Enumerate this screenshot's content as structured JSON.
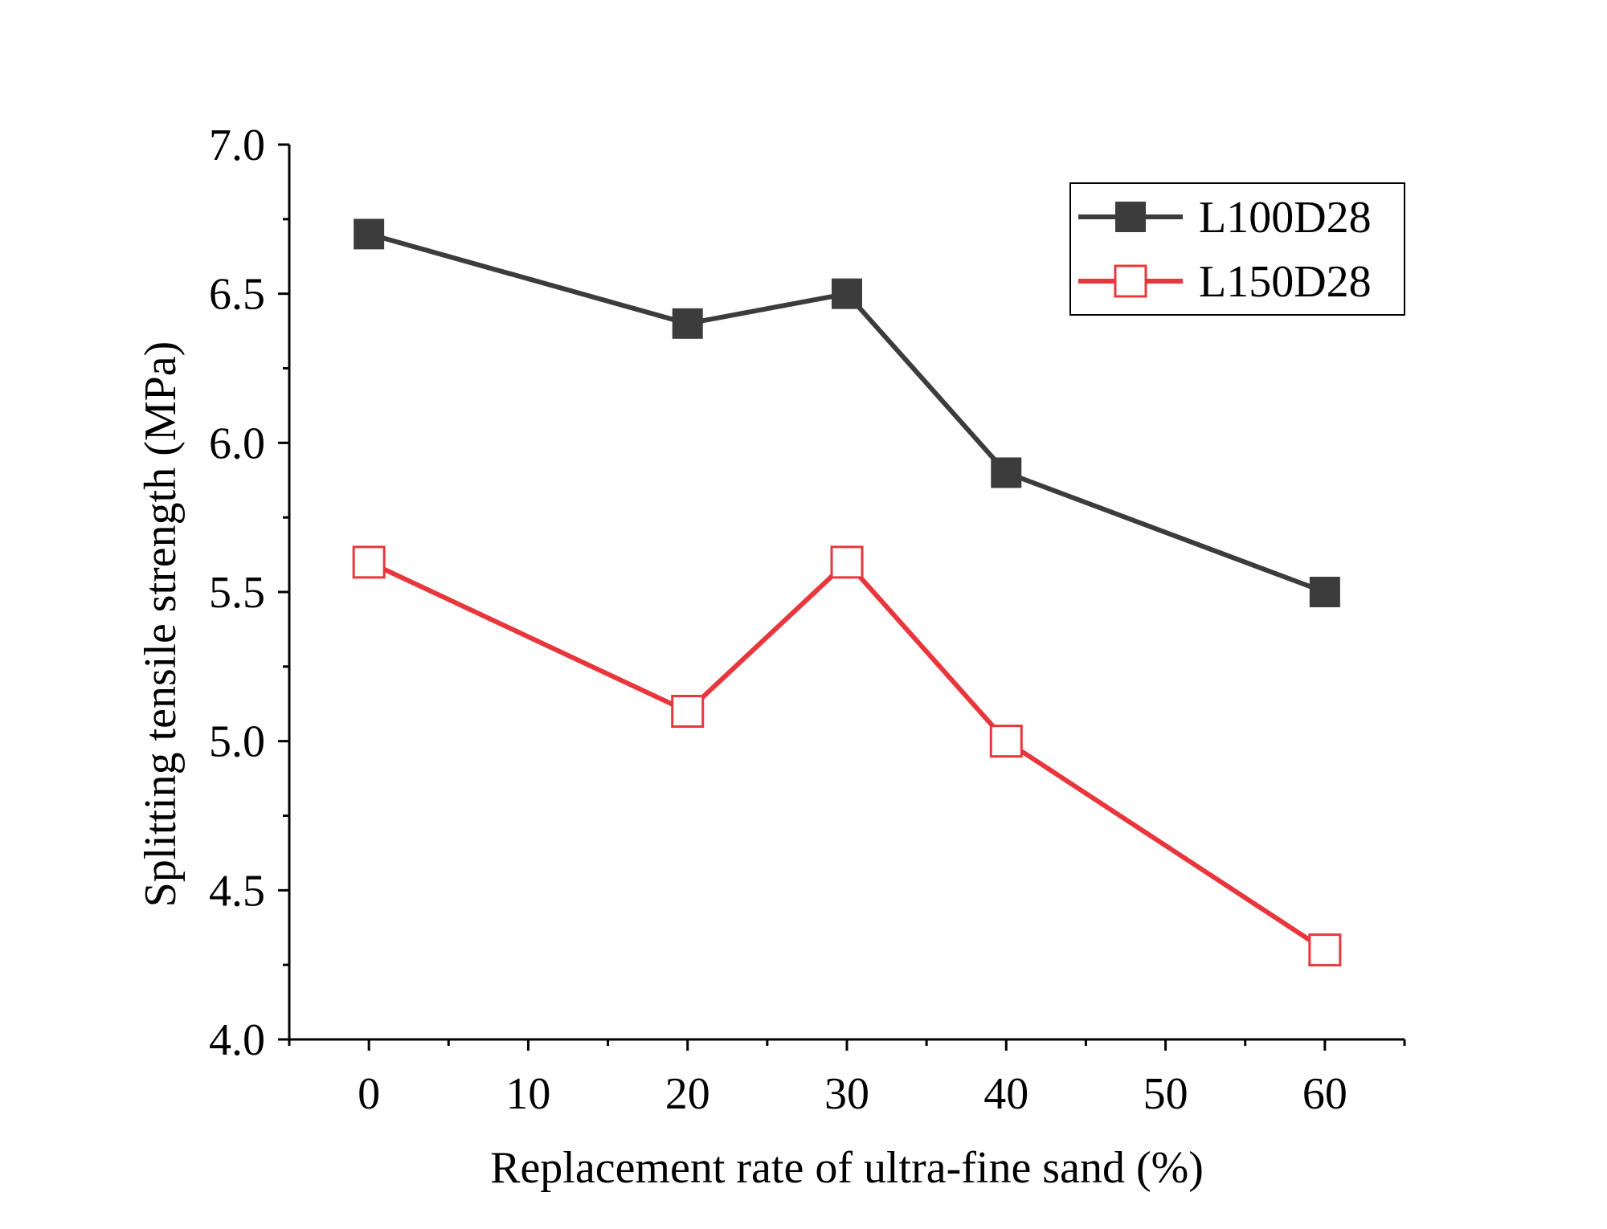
{
  "colors": {
    "series1": "#3c3c3c",
    "series2": "#e8373c",
    "axis": "#000000",
    "background": "#ffffff"
  },
  "chart_data": {
    "type": "line",
    "title": "",
    "xlabel": "Replacement rate of ultra-fine sand (%)",
    "ylabel": "Splitting tensile strength (MPa)",
    "xlim": [
      -5,
      65
    ],
    "ylim": [
      4.0,
      7.0
    ],
    "x_ticks": [
      0,
      10,
      20,
      30,
      40,
      50,
      60
    ],
    "x_tick_labels": [
      "0",
      "10",
      "20",
      "30",
      "40",
      "50",
      "60"
    ],
    "y_ticks": [
      4.0,
      4.5,
      5.0,
      5.5,
      6.0,
      6.5,
      7.0
    ],
    "y_tick_labels": [
      "4.0",
      "4.5",
      "5.0",
      "5.5",
      "6.0",
      "6.5",
      "7.0"
    ],
    "grid": false,
    "legend_position": "top-right",
    "x": [
      0,
      20,
      30,
      40,
      60
    ],
    "series": [
      {
        "name": "L100D28",
        "values": [
          6.7,
          6.4,
          6.5,
          5.9,
          5.5
        ],
        "marker": "filled-square",
        "color": "#3c3c3c"
      },
      {
        "name": "L150D28",
        "values": [
          5.6,
          5.1,
          5.6,
          5.0,
          4.3
        ],
        "marker": "hollow-square",
        "color": "#e8373c"
      }
    ]
  }
}
